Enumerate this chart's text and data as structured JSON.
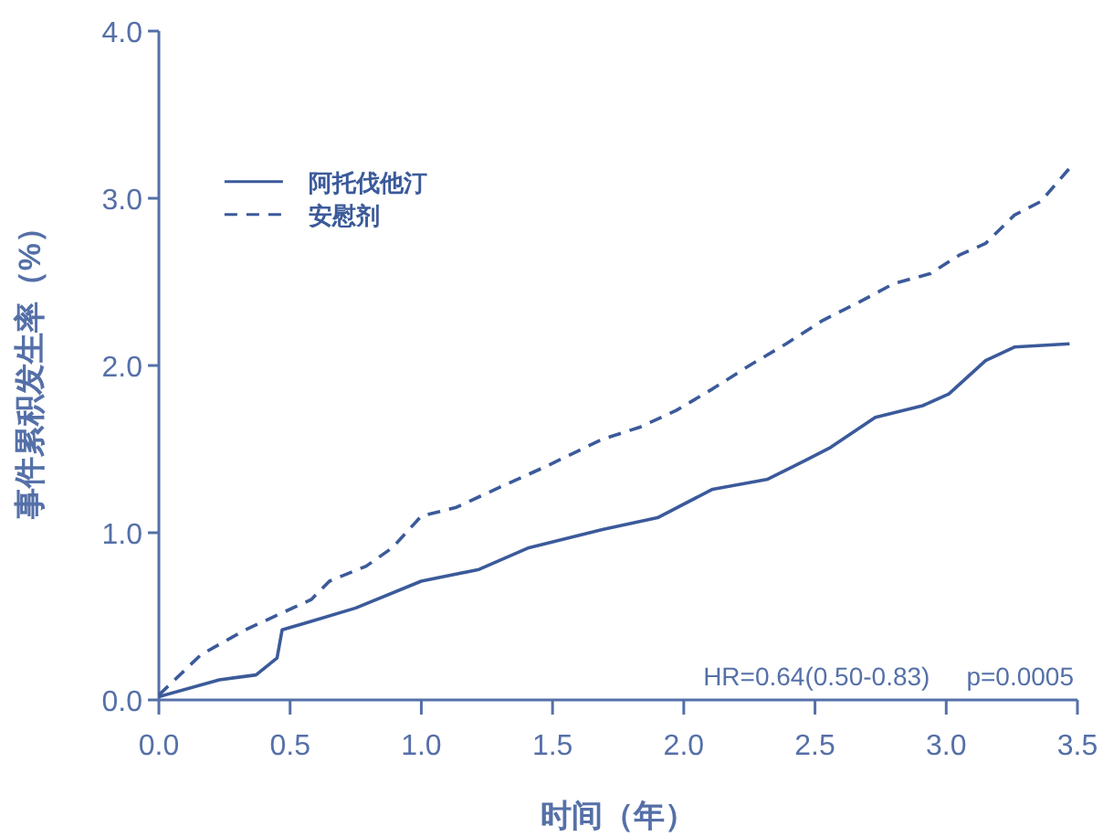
{
  "chart_data": {
    "type": "line",
    "xlabel": "时间（年）",
    "ylabel": "事件累积发生率（%）",
    "xlim": [
      0,
      3.5
    ],
    "ylim": [
      0,
      4
    ],
    "xticks": [
      {
        "value": 0,
        "label": "0.0"
      },
      {
        "value": 0.5,
        "label": "0.5"
      },
      {
        "value": 1,
        "label": "1.0"
      },
      {
        "value": 1.5,
        "label": "1.5"
      },
      {
        "value": 2,
        "label": "2.0"
      },
      {
        "value": 2.5,
        "label": "2.5"
      },
      {
        "value": 3,
        "label": "3.0"
      },
      {
        "value": 3.5,
        "label": "3.5"
      }
    ],
    "yticks": [
      {
        "value": 0,
        "label": "0.0"
      },
      {
        "value": 1,
        "label": "1.0"
      },
      {
        "value": 2,
        "label": "2.0"
      },
      {
        "value": 3,
        "label": "3.0"
      },
      {
        "value": 4,
        "label": "4.0"
      }
    ],
    "grid": false,
    "legend": "top left",
    "annotations": [
      "HR=0.64(0.50-0.83)",
      "p=0.0005"
    ],
    "series": [
      {
        "name": "阿托伐他汀",
        "color": "#3b5a9a",
        "line_style": "solid",
        "x": [
          0,
          0.23,
          0.37,
          0.45,
          0.47,
          0.58,
          0.75,
          1.0,
          1.22,
          1.41,
          1.69,
          1.9,
          2.11,
          2.32,
          2.46,
          2.56,
          2.73,
          2.91,
          3.01,
          3.15,
          3.26,
          3.47
        ],
        "values": [
          0.02,
          0.12,
          0.15,
          0.25,
          0.42,
          0.47,
          0.55,
          0.71,
          0.78,
          0.91,
          1.02,
          1.09,
          1.26,
          1.32,
          1.43,
          1.51,
          1.69,
          1.76,
          1.83,
          2.03,
          2.11,
          2.13
        ]
      },
      {
        "name": "安慰剂",
        "color": "#3b5a9a",
        "line_style": "dashed",
        "x": [
          0,
          0.16,
          0.33,
          0.51,
          0.58,
          0.65,
          0.79,
          0.89,
          1.0,
          1.13,
          1.31,
          1.48,
          1.69,
          1.83,
          1.97,
          2.11,
          2.25,
          2.39,
          2.53,
          2.67,
          2.8,
          2.94,
          3.05,
          3.15,
          3.26,
          3.36,
          3.47
        ],
        "values": [
          0.03,
          0.27,
          0.42,
          0.55,
          0.6,
          0.71,
          0.8,
          0.91,
          1.1,
          1.15,
          1.28,
          1.4,
          1.56,
          1.63,
          1.73,
          1.86,
          2.0,
          2.13,
          2.27,
          2.38,
          2.49,
          2.55,
          2.66,
          2.73,
          2.9,
          2.98,
          3.18
        ]
      }
    ]
  }
}
